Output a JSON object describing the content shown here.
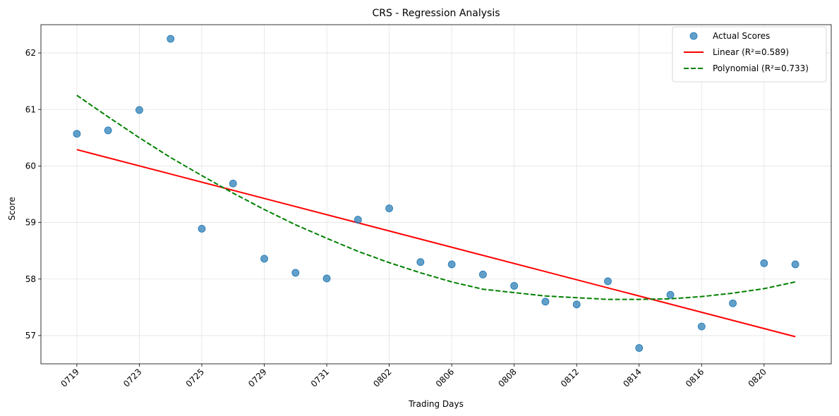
{
  "chart_data": {
    "type": "scatter",
    "title": "CRS - Regression Analysis",
    "xlabel": "Trading Days",
    "ylabel": "Score",
    "x_tick_labels": [
      "0719",
      "0723",
      "0725",
      "0729",
      "0731",
      "0802",
      "0806",
      "0808",
      "0812",
      "0814",
      "0816",
      "0820"
    ],
    "x_tick_indices": [
      0,
      2,
      4,
      6,
      8,
      10,
      12,
      14,
      16,
      18,
      20,
      22
    ],
    "ylim": [
      56.5,
      62.5
    ],
    "yticks": [
      57,
      58,
      59,
      60,
      61,
      62
    ],
    "grid": true,
    "legend_position": "top-right",
    "series": [
      {
        "name": "Actual Scores",
        "kind": "scatter",
        "color": "#1f77b4",
        "x": [
          0,
          1,
          2,
          3,
          4,
          5,
          6,
          7,
          8,
          9,
          10,
          11,
          12,
          13,
          14,
          15,
          16,
          17,
          18,
          19,
          20,
          21,
          22,
          23
        ],
        "y": [
          60.57,
          60.63,
          60.99,
          62.25,
          58.89,
          59.69,
          58.36,
          58.11,
          58.01,
          59.05,
          59.25,
          58.3,
          58.26,
          58.08,
          57.88,
          57.6,
          57.55,
          57.96,
          56.78,
          57.72,
          57.16,
          57.57,
          58.28,
          58.26
        ]
      },
      {
        "name": "Linear (R²=0.589)",
        "kind": "line",
        "color": "#ff0000",
        "dash": "solid",
        "x": [
          0,
          23
        ],
        "y": [
          60.29,
          56.98
        ]
      },
      {
        "name": "Polynomial (R²=0.733)",
        "kind": "line",
        "color": "#008000",
        "dash": "dashed",
        "x": [
          0,
          1,
          2,
          3,
          4,
          5,
          6,
          7,
          8,
          9,
          10,
          11,
          12,
          13,
          14,
          15,
          16,
          17,
          18,
          19,
          20,
          21,
          22,
          23
        ],
        "y": [
          61.25,
          60.87,
          60.5,
          60.15,
          59.83,
          59.52,
          59.23,
          58.96,
          58.72,
          58.49,
          58.29,
          58.11,
          57.95,
          57.82,
          57.76,
          57.7,
          57.67,
          57.64,
          57.64,
          57.65,
          57.69,
          57.75,
          57.83,
          57.95
        ]
      }
    ]
  }
}
